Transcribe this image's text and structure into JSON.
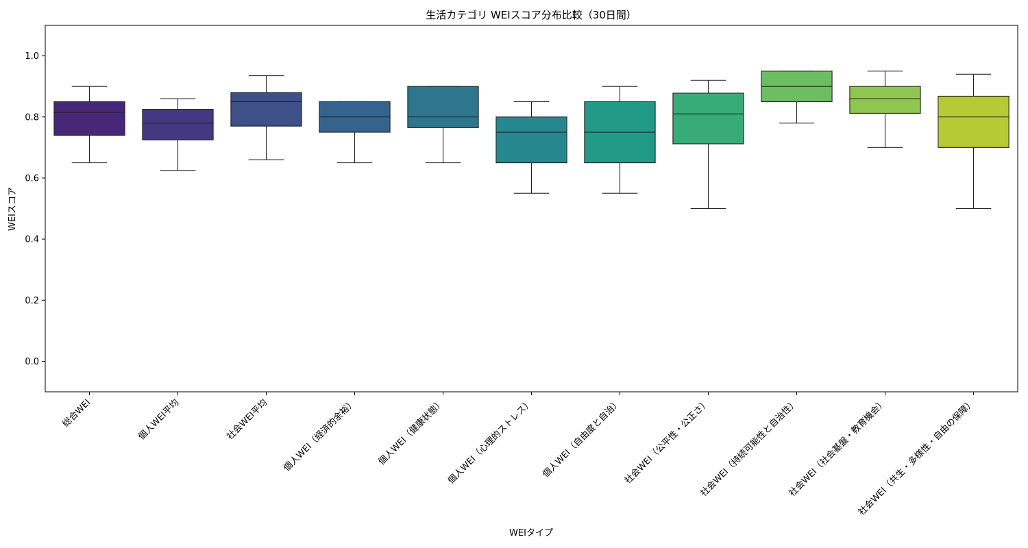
{
  "chart_data": {
    "type": "box",
    "title": "生活カテゴリ WEIスコア分布比較（30日間）",
    "xlabel": "WEIタイプ",
    "ylabel": "WEIスコア",
    "ylim": [
      -0.1,
      1.1
    ],
    "yticks": [
      "0.0",
      "0.2",
      "0.4",
      "0.6",
      "0.8",
      "1.0"
    ],
    "grid": false,
    "categories": [
      "総合WEI",
      "個人WEI平均",
      "社会WEI平均",
      "個人WEI（経済的余裕）",
      "個人WEI（健康状態）",
      "個人WEI（心理的ストレス）",
      "個人WEI（自由度と自治）",
      "社会WEI（公平性・公正さ）",
      "社会WEI（持続可能性と自治性）",
      "社会WEI（社会基盤・教育機会）",
      "社会WEI（共生・多様性・自由の保障）"
    ],
    "boxes": [
      {
        "whisker_low": 0.65,
        "q1": 0.74,
        "median": 0.815,
        "q3": 0.85,
        "whisker_high": 0.9,
        "color": "#472878"
      },
      {
        "whisker_low": 0.625,
        "q1": 0.725,
        "median": 0.78,
        "q3": 0.825,
        "whisker_high": 0.86,
        "color": "#453882"
      },
      {
        "whisker_low": 0.66,
        "q1": 0.77,
        "median": 0.85,
        "q3": 0.88,
        "whisker_high": 0.935,
        "color": "#3d5089"
      },
      {
        "whisker_low": 0.65,
        "q1": 0.75,
        "median": 0.8,
        "q3": 0.85,
        "whisker_high": 0.85,
        "color": "#35638d"
      },
      {
        "whisker_low": 0.65,
        "q1": 0.765,
        "median": 0.8,
        "q3": 0.9,
        "whisker_high": 0.9,
        "color": "#2e768e"
      },
      {
        "whisker_low": 0.55,
        "q1": 0.65,
        "median": 0.75,
        "q3": 0.8,
        "whisker_high": 0.85,
        "color": "#26888e"
      },
      {
        "whisker_low": 0.55,
        "q1": 0.65,
        "median": 0.75,
        "q3": 0.85,
        "whisker_high": 0.9,
        "color": "#219a89"
      },
      {
        "whisker_low": 0.5,
        "q1": 0.712,
        "median": 0.81,
        "q3": 0.878,
        "whisker_high": 0.92,
        "color": "#39ab77"
      },
      {
        "whisker_low": 0.78,
        "q1": 0.85,
        "median": 0.9,
        "q3": 0.95,
        "whisker_high": 0.95,
        "color": "#6dbe62"
      },
      {
        "whisker_low": 0.7,
        "q1": 0.812,
        "median": 0.86,
        "q3": 0.9,
        "whisker_high": 0.95,
        "color": "#90c64f"
      },
      {
        "whisker_low": 0.5,
        "q1": 0.7,
        "median": 0.8,
        "q3": 0.868,
        "whisker_high": 0.94,
        "color": "#b6ca34"
      }
    ]
  }
}
